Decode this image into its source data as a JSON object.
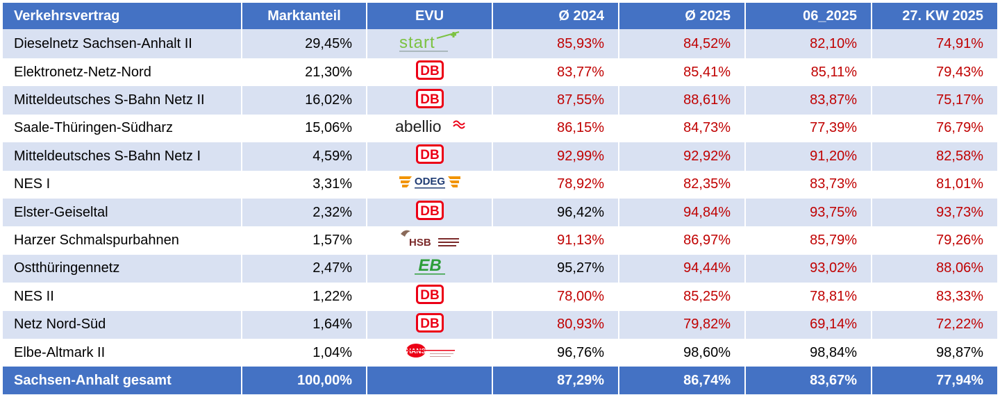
{
  "header": {
    "contract": "Verkehrsvertrag",
    "share": "Marktanteil",
    "evu": "EVU",
    "avg2024": "Ø 2024",
    "avg2025": "Ø 2025",
    "m062025": "06_2025",
    "kw27": "27. KW 2025"
  },
  "rows": [
    {
      "contract": "Dieselnetz Sachsen-Anhalt II",
      "share": "29,45%",
      "evu_logo": "start-logo",
      "avg2024": "85,93%",
      "avg2025": "84,52%",
      "m062025": "82,10%",
      "kw27": "74,91%",
      "red": [
        true,
        true,
        true,
        true
      ]
    },
    {
      "contract": "Elektronetz-Netz-Nord",
      "share": "21,30%",
      "evu_logo": "db-logo",
      "avg2024": "83,77%",
      "avg2025": "85,41%",
      "m062025": "85,11%",
      "kw27": "79,43%",
      "red": [
        true,
        true,
        true,
        true
      ]
    },
    {
      "contract": "Mitteldeutsches S-Bahn Netz II",
      "share": "16,02%",
      "evu_logo": "db-logo",
      "avg2024": "87,55%",
      "avg2025": "88,61%",
      "m062025": "83,87%",
      "kw27": "75,17%",
      "red": [
        true,
        true,
        true,
        true
      ]
    },
    {
      "contract": "Saale-Thüringen-Südharz",
      "share": "15,06%",
      "evu_logo": "abellio-logo",
      "avg2024": "86,15%",
      "avg2025": "84,73%",
      "m062025": "77,39%",
      "kw27": "76,79%",
      "red": [
        true,
        true,
        true,
        true
      ]
    },
    {
      "contract": "Mitteldeutsches S-Bahn Netz I",
      "share": "4,59%",
      "evu_logo": "db-logo",
      "avg2024": "92,99%",
      "avg2025": "92,92%",
      "m062025": "91,20%",
      "kw27": "82,58%",
      "red": [
        true,
        true,
        true,
        true
      ]
    },
    {
      "contract": "NES I",
      "share": "3,31%",
      "evu_logo": "odeg-logo",
      "avg2024": "78,92%",
      "avg2025": "82,35%",
      "m062025": "83,73%",
      "kw27": "81,01%",
      "red": [
        true,
        true,
        true,
        true
      ]
    },
    {
      "contract": "Elster-Geiseltal",
      "share": "2,32%",
      "evu_logo": "db-logo",
      "avg2024": "96,42%",
      "avg2025": "94,84%",
      "m062025": "93,75%",
      "kw27": "93,73%",
      "red": [
        false,
        true,
        true,
        true
      ]
    },
    {
      "contract": "Harzer Schmalspurbahnen",
      "share": "1,57%",
      "evu_logo": "hsb-logo",
      "avg2024": "91,13%",
      "avg2025": "86,97%",
      "m062025": "85,79%",
      "kw27": "79,26%",
      "red": [
        true,
        true,
        true,
        true
      ]
    },
    {
      "contract": "Ostthüringennetz",
      "share": "2,47%",
      "evu_logo": "eb-logo",
      "avg2024": "95,27%",
      "avg2025": "94,44%",
      "m062025": "93,02%",
      "kw27": "88,06%",
      "red": [
        false,
        true,
        true,
        true
      ]
    },
    {
      "contract": "NES II",
      "share": "1,22%",
      "evu_logo": "db-logo",
      "avg2024": "78,00%",
      "avg2025": "85,25%",
      "m062025": "78,81%",
      "kw27": "83,33%",
      "red": [
        true,
        true,
        true,
        true
      ]
    },
    {
      "contract": "Netz Nord-Süd",
      "share": "1,64%",
      "evu_logo": "db-logo",
      "avg2024": "80,93%",
      "avg2025": "79,82%",
      "m062025": "69,14%",
      "kw27": "72,22%",
      "red": [
        true,
        true,
        true,
        true
      ]
    },
    {
      "contract": "Elbe-Altmark II",
      "share": "1,04%",
      "evu_logo": "hans-logo",
      "avg2024": "96,76%",
      "avg2025": "98,60%",
      "m062025": "98,84%",
      "kw27": "98,87%",
      "red": [
        false,
        false,
        false,
        false
      ]
    }
  ],
  "total": {
    "contract": "Sachsen-Anhalt gesamt",
    "share": "100,00%",
    "avg2024": "87,29%",
    "avg2025": "86,74%",
    "m062025": "83,67%",
    "kw27": "77,94%"
  },
  "logo_text": {
    "start": "start",
    "db": "DB",
    "abellio": "abellio",
    "odeg": "ODEG",
    "hsb": "HSB",
    "eb": "EB",
    "hans": "HANS"
  },
  "colors": {
    "header_bg": "#4472c4",
    "band_bg": "#d9e1f2",
    "below_target": "#c00000",
    "db_red": "#ec0016",
    "start_green": "#7cc242",
    "eb_green": "#2e9e3a",
    "odeg_orange": "#f29400",
    "odeg_navy": "#1f3b73"
  }
}
